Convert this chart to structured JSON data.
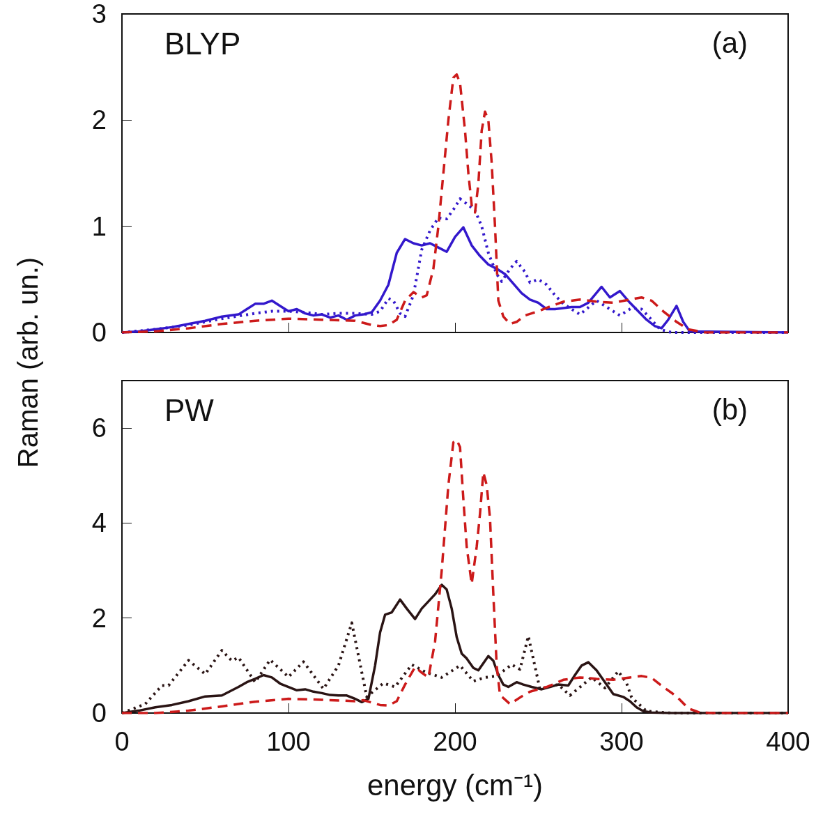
{
  "chart_data": [
    {
      "type": "line",
      "ylabel": "Raman (arb. un.)",
      "annotations": [
        "BLYP",
        "(a)"
      ],
      "xlim": [
        0,
        400
      ],
      "xticks": [
        0,
        100,
        200,
        300,
        400
      ],
      "ylim": [
        0,
        3
      ],
      "yticks": [
        0,
        1,
        2,
        3
      ],
      "tick_labels": "y",
      "grid": false,
      "series": [
        {
          "color": "#3318cc",
          "line_style": "solid",
          "x": [
            0,
            10,
            20,
            30,
            40,
            50,
            60,
            70,
            75,
            80,
            85,
            90,
            95,
            100,
            105,
            110,
            115,
            120,
            125,
            130,
            135,
            140,
            145,
            150,
            155,
            160,
            165,
            170,
            175,
            180,
            185,
            190,
            195,
            200,
            205,
            210,
            215,
            220,
            225,
            230,
            235,
            240,
            245,
            250,
            255,
            260,
            265,
            270,
            275,
            280,
            288,
            293,
            299,
            305,
            310,
            315,
            320,
            324,
            328,
            333,
            337,
            341,
            400
          ],
          "values": [
            0,
            0.01,
            0.03,
            0.05,
            0.08,
            0.11,
            0.15,
            0.17,
            0.22,
            0.27,
            0.27,
            0.3,
            0.25,
            0.2,
            0.22,
            0.18,
            0.16,
            0.17,
            0.14,
            0.16,
            0.12,
            0.16,
            0.17,
            0.19,
            0.3,
            0.45,
            0.75,
            0.88,
            0.84,
            0.82,
            0.84,
            0.8,
            0.76,
            0.9,
            0.99,
            0.82,
            0.72,
            0.64,
            0.6,
            0.55,
            0.46,
            0.37,
            0.31,
            0.28,
            0.22,
            0.22,
            0.23,
            0.24,
            0.24,
            0.28,
            0.43,
            0.33,
            0.39,
            0.28,
            0.2,
            0.12,
            0.06,
            0.04,
            0.12,
            0.25,
            0.1,
            0.01,
            0
          ]
        },
        {
          "color": "#3318cc",
          "line_style": "dotted",
          "x": [
            0,
            20,
            40,
            60,
            80,
            90,
            100,
            110,
            120,
            130,
            140,
            150,
            155,
            160,
            163,
            167,
            170,
            175,
            180,
            185,
            190,
            195,
            200,
            203,
            208,
            212,
            216,
            220,
            225,
            228,
            233,
            237,
            242,
            245,
            250,
            255,
            260,
            265,
            270,
            275,
            285,
            292,
            299,
            306,
            312,
            318,
            323,
            330,
            400
          ],
          "values": [
            0,
            0.03,
            0.07,
            0.13,
            0.18,
            0.2,
            0.2,
            0.19,
            0.17,
            0.18,
            0.18,
            0.17,
            0.2,
            0.32,
            0.3,
            0.18,
            0.15,
            0.35,
            0.78,
            0.96,
            1.08,
            1.07,
            1.18,
            1.26,
            1.2,
            1.15,
            1.0,
            0.75,
            0.55,
            0.48,
            0.6,
            0.67,
            0.57,
            0.47,
            0.5,
            0.45,
            0.35,
            0.27,
            0.22,
            0.17,
            0.3,
            0.23,
            0.16,
            0.23,
            0.22,
            0.12,
            0.03,
            0,
            0
          ]
        },
        {
          "color": "#cc1a1a",
          "line_style": "dashed",
          "x": [
            0,
            20,
            40,
            60,
            80,
            100,
            120,
            140,
            150,
            155,
            160,
            165,
            170,
            175,
            180,
            183,
            187,
            190,
            193,
            196,
            199,
            201,
            203,
            206,
            208,
            210,
            212,
            214,
            216,
            218,
            220,
            222,
            224,
            226,
            229,
            233,
            237,
            242,
            250,
            258,
            265,
            275,
            285,
            295,
            305,
            312,
            318,
            325,
            333,
            340,
            350,
            400
          ],
          "values": [
            0,
            0.01,
            0.04,
            0.08,
            0.11,
            0.13,
            0.12,
            0.11,
            0.07,
            0.06,
            0.07,
            0.12,
            0.3,
            0.38,
            0.33,
            0.35,
            0.6,
            1.0,
            1.5,
            2.0,
            2.4,
            2.43,
            2.35,
            1.9,
            1.5,
            1.2,
            1.13,
            1.4,
            1.9,
            2.08,
            2.0,
            1.6,
            1.0,
            0.3,
            0.15,
            0.08,
            0.1,
            0.16,
            0.2,
            0.25,
            0.29,
            0.31,
            0.29,
            0.28,
            0.31,
            0.33,
            0.3,
            0.2,
            0.1,
            0.03,
            0,
            0
          ]
        }
      ]
    },
    {
      "type": "line",
      "xlabel": "energy (cm⁻¹)",
      "annotations": [
        "PW",
        "(b)"
      ],
      "xlim": [
        0,
        400
      ],
      "xticks": [
        0,
        100,
        200,
        300,
        400
      ],
      "ylim": [
        0,
        7
      ],
      "yticks": [
        0,
        2,
        4,
        6
      ],
      "grid": false,
      "series": [
        {
          "color": "#2a1414",
          "line_style": "solid",
          "x": [
            0,
            10,
            20,
            30,
            40,
            50,
            60,
            70,
            75,
            80,
            85,
            90,
            95,
            100,
            105,
            110,
            115,
            120,
            125,
            130,
            135,
            140,
            144,
            148,
            152,
            155,
            158,
            162,
            167,
            171,
            176,
            180,
            184,
            188,
            192,
            195,
            198,
            201,
            204,
            207,
            211,
            214,
            217,
            220,
            223,
            226,
            229,
            232,
            237,
            241,
            246,
            252,
            257,
            262,
            268,
            272,
            276,
            280,
            285,
            290,
            295,
            301,
            305,
            309,
            313,
            318,
            330,
            400
          ],
          "values": [
            0,
            0.05,
            0.12,
            0.17,
            0.25,
            0.35,
            0.37,
            0.55,
            0.65,
            0.72,
            0.8,
            0.75,
            0.62,
            0.55,
            0.48,
            0.5,
            0.45,
            0.42,
            0.38,
            0.37,
            0.37,
            0.3,
            0.23,
            0.3,
            1.0,
            1.7,
            2.07,
            2.12,
            2.39,
            2.2,
            1.98,
            2.2,
            2.35,
            2.5,
            2.7,
            2.6,
            2.2,
            1.6,
            1.25,
            1.15,
            0.95,
            0.9,
            1.05,
            1.2,
            1.1,
            0.8,
            0.6,
            0.55,
            0.65,
            0.6,
            0.55,
            0.5,
            0.55,
            0.6,
            0.58,
            0.8,
            1.0,
            1.07,
            0.9,
            0.65,
            0.4,
            0.34,
            0.25,
            0.12,
            0.04,
            0.01,
            0,
            0
          ]
        },
        {
          "color": "#2a1414",
          "line_style": "dotted",
          "x": [
            0,
            14,
            24,
            28,
            40,
            50,
            60,
            66,
            70,
            80,
            89,
            100,
            109,
            121,
            130,
            138,
            147,
            157,
            164,
            174,
            183,
            192,
            203,
            211,
            218,
            225,
            234,
            239,
            244,
            251,
            256,
            262,
            269,
            282,
            290,
            298,
            303,
            306,
            315,
            330,
            400
          ],
          "values": [
            0,
            0.19,
            0.58,
            0.58,
            1.11,
            0.82,
            1.32,
            1.1,
            1.17,
            0.65,
            1.12,
            0.76,
            1.08,
            0.51,
            1.0,
            1.9,
            0.34,
            0.63,
            0.55,
            1.02,
            0.85,
            0.75,
            1.0,
            0.67,
            0.75,
            0.78,
            1.02,
            0.92,
            1.62,
            0.5,
            0.56,
            0.6,
            0.37,
            0.75,
            0.53,
            0.88,
            0.63,
            0.33,
            0.04,
            0,
            0
          ]
        },
        {
          "color": "#cc1a1a",
          "line_style": "dashed",
          "x": [
            0,
            20,
            40,
            60,
            80,
            100,
            120,
            140,
            145,
            150,
            155,
            160,
            165,
            170,
            176,
            180,
            184,
            188,
            192,
            196,
            199,
            201,
            203,
            205,
            207,
            210,
            213,
            215,
            217,
            219,
            221,
            223,
            225,
            227,
            233,
            240,
            245,
            250,
            255,
            260,
            265,
            275,
            285,
            295,
            305,
            312,
            318,
            325,
            333,
            340,
            347,
            355,
            400
          ],
          "values": [
            0,
            0,
            0.05,
            0.14,
            0.24,
            0.3,
            0.28,
            0.25,
            0.27,
            0.22,
            0.17,
            0.16,
            0.25,
            0.6,
            0.97,
            0.85,
            0.75,
            1.5,
            3.0,
            4.8,
            5.7,
            5.75,
            5.6,
            4.5,
            3.5,
            2.72,
            3.5,
            4.2,
            5.07,
            4.8,
            4.1,
            2.5,
            1.0,
            0.38,
            0.19,
            0.35,
            0.45,
            0.5,
            0.55,
            0.62,
            0.7,
            0.75,
            0.72,
            0.7,
            0.75,
            0.78,
            0.74,
            0.55,
            0.35,
            0.1,
            0.01,
            0,
            0
          ]
        }
      ]
    }
  ]
}
